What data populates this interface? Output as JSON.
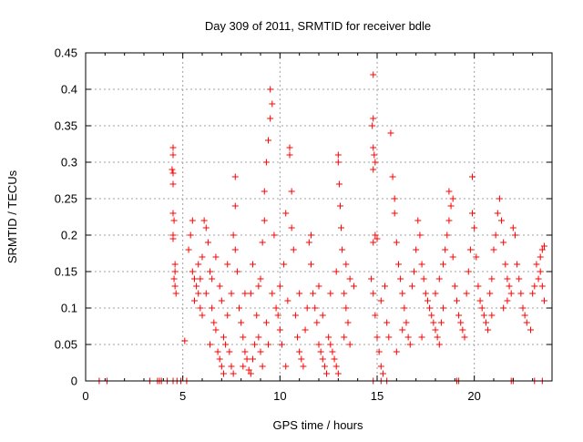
{
  "chart_data": {
    "type": "scatter",
    "title": "Day 309 of 2011, SRMTID for receiver bdle",
    "xlabel": "GPS time / hours",
    "ylabel": "SRMTID / TECUs",
    "xlim": [
      0,
      24
    ],
    "ylim": [
      0,
      0.45
    ],
    "xticks": [
      0,
      5,
      10,
      15,
      20
    ],
    "yticks": [
      0,
      0.05,
      0.1,
      0.15,
      0.2,
      0.25,
      0.3,
      0.35,
      0.4,
      0.45
    ],
    "ytick_labels": [
      "0",
      "0.05",
      "0.1",
      "0.15",
      "0.2",
      "0.25",
      "0.3",
      "0.35",
      "0.4",
      "0.45"
    ],
    "grid": true,
    "marker": "+",
    "color": "#ff0000",
    "series": [
      {
        "name": "SRMTID",
        "points": [
          [
            0.7,
            0
          ],
          [
            1.1,
            0
          ],
          [
            3.3,
            0
          ],
          [
            3.7,
            0
          ],
          [
            3.8,
            0
          ],
          [
            3.9,
            0
          ],
          [
            4.2,
            0
          ],
          [
            4.5,
            0
          ],
          [
            4.7,
            0
          ],
          [
            4.9,
            0
          ],
          [
            5.2,
            0
          ],
          [
            14.8,
            0
          ],
          [
            15.2,
            0
          ],
          [
            15.5,
            0
          ],
          [
            19.1,
            0
          ],
          [
            19.2,
            0
          ],
          [
            21.9,
            0
          ],
          [
            22.0,
            0
          ],
          [
            23.1,
            0
          ],
          [
            23.5,
            0
          ],
          [
            4.5,
            0.32
          ],
          [
            4.5,
            0.31
          ],
          [
            4.45,
            0.29
          ],
          [
            4.5,
            0.285
          ],
          [
            4.5,
            0.27
          ],
          [
            4.5,
            0.23
          ],
          [
            4.55,
            0.22
          ],
          [
            4.5,
            0.2
          ],
          [
            4.5,
            0.195
          ],
          [
            4.6,
            0.16
          ],
          [
            4.6,
            0.15
          ],
          [
            4.55,
            0.14
          ],
          [
            4.6,
            0.13
          ],
          [
            4.65,
            0.12
          ],
          [
            5.1,
            0.055
          ],
          [
            5.3,
            0.18
          ],
          [
            5.4,
            0.2
          ],
          [
            5.5,
            0.22
          ],
          [
            5.5,
            0.15
          ],
          [
            5.6,
            0.14
          ],
          [
            5.7,
            0.13
          ],
          [
            5.8,
            0.12
          ],
          [
            5.6,
            0.11
          ],
          [
            5.9,
            0.1
          ],
          [
            6.0,
            0.09
          ],
          [
            5.8,
            0.16
          ],
          [
            6.0,
            0.17
          ],
          [
            6.2,
            0.21
          ],
          [
            6.1,
            0.22
          ],
          [
            6.3,
            0.19
          ],
          [
            6.4,
            0.15
          ],
          [
            6.5,
            0.14
          ],
          [
            6.2,
            0.12
          ],
          [
            6.5,
            0.1
          ],
          [
            6.6,
            0.08
          ],
          [
            6.7,
            0.07
          ],
          [
            6.4,
            0.05
          ],
          [
            6.8,
            0.04
          ],
          [
            6.9,
            0.03
          ],
          [
            7.0,
            0.02
          ],
          [
            7.1,
            0.01
          ],
          [
            7.2,
            0.05
          ],
          [
            7.3,
            0.09
          ],
          [
            6.9,
            0.13
          ],
          [
            7.0,
            0.11
          ],
          [
            7.1,
            0.06
          ],
          [
            7.4,
            0.04
          ],
          [
            7.5,
            0.02
          ],
          [
            7.6,
            0.01
          ],
          [
            7.5,
            0.12
          ],
          [
            7.7,
            0.18
          ],
          [
            7.6,
            0.2
          ],
          [
            7.7,
            0.24
          ],
          [
            7.7,
            0.28
          ],
          [
            7.8,
            0.15
          ],
          [
            7.9,
            0.1
          ],
          [
            8.0,
            0.08
          ],
          [
            8.1,
            0.06
          ],
          [
            8.2,
            0.04
          ],
          [
            8.3,
            0.03
          ],
          [
            8.1,
            0.02
          ],
          [
            8.4,
            0.015
          ],
          [
            8.5,
            0.01
          ],
          [
            8.6,
            0.03
          ],
          [
            8.7,
            0.05
          ],
          [
            8.5,
            0.12
          ],
          [
            8.6,
            0.16
          ],
          [
            8.8,
            0.09
          ],
          [
            8.9,
            0.06
          ],
          [
            9.0,
            0.04
          ],
          [
            9.1,
            0.02
          ],
          [
            9.0,
            0.14
          ],
          [
            9.1,
            0.19
          ],
          [
            9.2,
            0.22
          ],
          [
            9.2,
            0.26
          ],
          [
            9.3,
            0.3
          ],
          [
            9.4,
            0.33
          ],
          [
            9.5,
            0.36
          ],
          [
            9.6,
            0.38
          ],
          [
            9.5,
            0.4
          ],
          [
            9.7,
            0.2
          ],
          [
            9.6,
            0.12
          ],
          [
            9.3,
            0.08
          ],
          [
            9.4,
            0.05
          ],
          [
            9.8,
            0.1
          ],
          [
            9.9,
            0.09
          ],
          [
            10.0,
            0.07
          ],
          [
            10.1,
            0.05
          ],
          [
            10.0,
            0.13
          ],
          [
            10.2,
            0.16
          ],
          [
            10.3,
            0.23
          ],
          [
            10.5,
            0.32
          ],
          [
            10.5,
            0.31
          ],
          [
            10.6,
            0.26
          ],
          [
            10.6,
            0.21
          ],
          [
            10.7,
            0.18
          ],
          [
            10.4,
            0.11
          ],
          [
            10.8,
            0.09
          ],
          [
            10.9,
            0.06
          ],
          [
            11.0,
            0.04
          ],
          [
            11.1,
            0.03
          ],
          [
            11.2,
            0.02
          ],
          [
            11.0,
            0.12
          ],
          [
            11.3,
            0.07
          ],
          [
            11.5,
            0.19
          ],
          [
            11.6,
            0.2
          ],
          [
            11.6,
            0.16
          ],
          [
            11.7,
            0.12
          ],
          [
            11.8,
            0.1
          ],
          [
            11.9,
            0.08
          ],
          [
            12.0,
            0.05
          ],
          [
            12.1,
            0.04
          ],
          [
            12.2,
            0.03
          ],
          [
            12.3,
            0.02
          ],
          [
            12.4,
            0.01
          ],
          [
            12.2,
            0.09
          ],
          [
            12.5,
            0.06
          ],
          [
            12.6,
            0.05
          ],
          [
            12.7,
            0.04
          ],
          [
            12.8,
            0.03
          ],
          [
            12.9,
            0.02
          ],
          [
            13.0,
            0.01
          ],
          [
            13.0,
            0.31
          ],
          [
            13.0,
            0.3
          ],
          [
            13.05,
            0.27
          ],
          [
            13.1,
            0.24
          ],
          [
            13.15,
            0.21
          ],
          [
            13.2,
            0.18
          ],
          [
            12.9,
            0.15
          ],
          [
            13.3,
            0.12
          ],
          [
            13.4,
            0.1
          ],
          [
            13.5,
            0.08
          ],
          [
            13.3,
            0.06
          ],
          [
            13.6,
            0.05
          ],
          [
            13.4,
            0.16
          ],
          [
            13.6,
            0.14
          ],
          [
            12.6,
            0.12
          ],
          [
            12.0,
            0.13
          ],
          [
            11.4,
            0.1
          ],
          [
            8.2,
            0.12
          ],
          [
            7.3,
            0.16
          ],
          [
            6.7,
            0.17
          ],
          [
            5.9,
            0.14
          ],
          [
            14.8,
            0.42
          ],
          [
            14.8,
            0.36
          ],
          [
            14.75,
            0.35
          ],
          [
            14.8,
            0.32
          ],
          [
            14.85,
            0.31
          ],
          [
            14.9,
            0.3
          ],
          [
            14.8,
            0.29
          ],
          [
            14.9,
            0.2
          ],
          [
            15.0,
            0.195
          ],
          [
            14.8,
            0.19
          ],
          [
            14.7,
            0.14
          ],
          [
            14.8,
            0.12
          ],
          [
            14.9,
            0.09
          ],
          [
            15.0,
            0.06
          ],
          [
            15.1,
            0.04
          ],
          [
            15.2,
            0.02
          ],
          [
            15.3,
            0.01
          ],
          [
            15.2,
            0.11
          ],
          [
            15.4,
            0.13
          ],
          [
            15.5,
            0.08
          ],
          [
            15.6,
            0.06
          ],
          [
            15.7,
            0.34
          ],
          [
            15.8,
            0.28
          ],
          [
            15.9,
            0.25
          ],
          [
            15.9,
            0.23
          ],
          [
            16.0,
            0.19
          ],
          [
            16.1,
            0.16
          ],
          [
            16.2,
            0.14
          ],
          [
            16.3,
            0.12
          ],
          [
            16.4,
            0.1
          ],
          [
            16.5,
            0.08
          ],
          [
            16.3,
            0.07
          ],
          [
            16.6,
            0.06
          ],
          [
            16.7,
            0.05
          ],
          [
            16.8,
            0.13
          ],
          [
            16.9,
            0.15
          ],
          [
            17.0,
            0.18
          ],
          [
            17.1,
            0.22
          ],
          [
            17.2,
            0.2
          ],
          [
            17.3,
            0.16
          ],
          [
            17.4,
            0.14
          ],
          [
            17.5,
            0.12
          ],
          [
            17.6,
            0.11
          ],
          [
            17.7,
            0.1
          ],
          [
            17.8,
            0.09
          ],
          [
            17.9,
            0.08
          ],
          [
            18.0,
            0.07
          ],
          [
            18.1,
            0.06
          ],
          [
            18.2,
            0.05
          ],
          [
            18.0,
            0.12
          ],
          [
            18.2,
            0.14
          ],
          [
            18.4,
            0.16
          ],
          [
            18.5,
            0.18
          ],
          [
            18.6,
            0.2
          ],
          [
            18.7,
            0.22
          ],
          [
            18.8,
            0.24
          ],
          [
            18.7,
            0.26
          ],
          [
            18.9,
            0.25
          ],
          [
            18.9,
            0.17
          ],
          [
            19.0,
            0.13
          ],
          [
            19.1,
            0.11
          ],
          [
            19.2,
            0.09
          ],
          [
            19.3,
            0.08
          ],
          [
            19.4,
            0.07
          ],
          [
            19.5,
            0.06
          ],
          [
            19.6,
            0.12
          ],
          [
            19.7,
            0.15
          ],
          [
            19.8,
            0.18
          ],
          [
            19.9,
            0.23
          ],
          [
            19.9,
            0.28
          ],
          [
            20.0,
            0.21
          ],
          [
            20.1,
            0.17
          ],
          [
            20.2,
            0.13
          ],
          [
            20.3,
            0.11
          ],
          [
            20.4,
            0.1
          ],
          [
            20.5,
            0.09
          ],
          [
            20.6,
            0.08
          ],
          [
            20.7,
            0.07
          ],
          [
            20.8,
            0.12
          ],
          [
            20.9,
            0.14
          ],
          [
            21.0,
            0.18
          ],
          [
            21.1,
            0.2
          ],
          [
            21.2,
            0.23
          ],
          [
            21.3,
            0.25
          ],
          [
            21.4,
            0.22
          ],
          [
            21.5,
            0.19
          ],
          [
            21.6,
            0.16
          ],
          [
            21.7,
            0.14
          ],
          [
            21.8,
            0.13
          ],
          [
            21.9,
            0.12
          ],
          [
            22.0,
            0.21
          ],
          [
            22.1,
            0.2
          ],
          [
            22.2,
            0.16
          ],
          [
            22.3,
            0.14
          ],
          [
            22.4,
            0.12
          ],
          [
            22.5,
            0.1
          ],
          [
            22.6,
            0.09
          ],
          [
            22.7,
            0.08
          ],
          [
            22.9,
            0.07
          ],
          [
            23.0,
            0.12
          ],
          [
            23.1,
            0.13
          ],
          [
            23.3,
            0.14
          ],
          [
            23.4,
            0.15
          ],
          [
            23.5,
            0.13
          ],
          [
            23.6,
            0.11
          ],
          [
            23.6,
            0.185
          ],
          [
            23.5,
            0.18
          ],
          [
            23.4,
            0.17
          ],
          [
            23.2,
            0.16
          ],
          [
            21.5,
            0.1
          ],
          [
            21.7,
            0.11
          ],
          [
            20.9,
            0.09
          ],
          [
            18.4,
            0.1
          ],
          [
            18.3,
            0.08
          ],
          [
            17.3,
            0.06
          ],
          [
            16.0,
            0.04
          ],
          [
            13.8,
            0.13
          ],
          [
            10.3,
            0.02
          ],
          [
            8.9,
            0.13
          ]
        ]
      }
    ]
  }
}
